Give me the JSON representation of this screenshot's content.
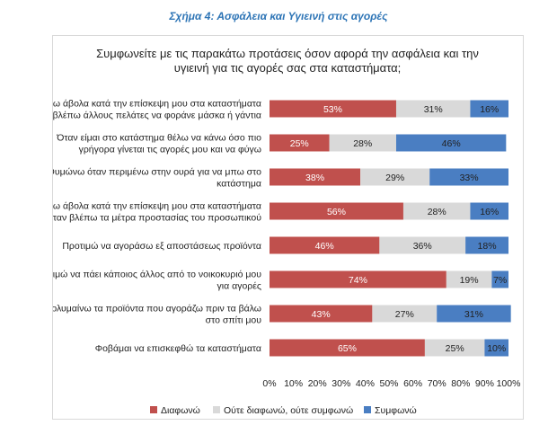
{
  "figure_title": "Σχήμα 4: Ασφάλεια και Υγιεινή στις αγορές",
  "chart_data": {
    "type": "bar",
    "orientation": "horizontal",
    "stacked": true,
    "title_lines": [
      "Συμφωνείτε με τις παρακάτω προτάσεις όσον αφορά την ασφάλεια και την",
      "υγιεινή για τις αγορές σας στα καταστήματα;"
    ],
    "categories": [
      [
        "Νιώθω άβολα κατά την επίσκεψη μου στα καταστήματα",
        "όταν βλέπω άλλους πελάτες να φοράνε μάσκα ή γάντια"
      ],
      [
        "Όταν είμαι στο κατάστημα θέλω να κάνω όσο πιο",
        "γρήγορα γίνεται τις αγορές μου και να φύγω"
      ],
      [
        "Θυμώνω όταν περιμένω στην ουρά για να μπω στο",
        "κατάστημα"
      ],
      [
        "Νιώθω άβολα κατά την επίσκεψη μου στα καταστήματα",
        "όταν βλέπω τα μέτρα προστασίας του προσωπικού"
      ],
      [
        "Προτιμώ να αγοράσω εξ αποστάσεως προϊόντα"
      ],
      [
        "Προτιμώ να πάει κάποιος άλλος από το νοικοκυριό μου",
        "για αγορές"
      ],
      [
        "Απολυμαίνω τα προϊόντα που αγοράζω πριν τα βάλω",
        "στο σπίτι μου"
      ],
      [
        "Φοβάμαι να επισκεφθώ τα καταστήματα"
      ]
    ],
    "series": [
      {
        "name": "Διαφωνώ",
        "color": "#c0504d",
        "label_color": "#ffffff",
        "values": [
          53,
          25,
          38,
          56,
          46,
          74,
          43,
          65
        ]
      },
      {
        "name": "Ούτε διαφωνώ, ούτε συμφωνώ",
        "color": "#d9d9d9",
        "label_color": "#222222",
        "values": [
          31,
          28,
          29,
          28,
          36,
          19,
          27,
          25
        ]
      },
      {
        "name": "Συμφωνώ",
        "color": "#4a7ec2",
        "label_color": "#222222",
        "values": [
          16,
          46,
          33,
          16,
          18,
          7,
          31,
          10
        ]
      }
    ],
    "value_suffix": "%",
    "xlim": [
      0,
      100
    ],
    "xticks": [
      "0%",
      "10%",
      "20%",
      "30%",
      "40%",
      "50%",
      "60%",
      "70%",
      "80%",
      "90%",
      "100%"
    ],
    "legend_position": "bottom"
  }
}
